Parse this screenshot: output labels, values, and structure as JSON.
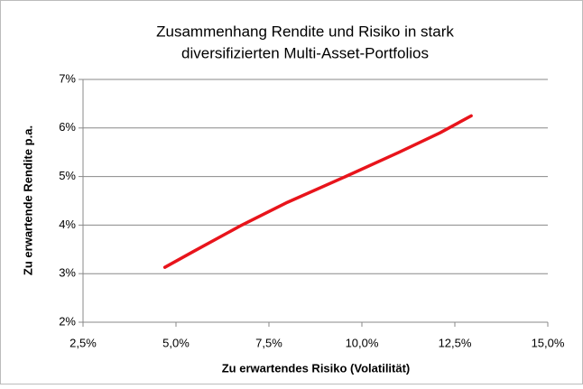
{
  "chart_data": {
    "type": "line",
    "title": [
      "Zusammenhang Rendite und Risiko in stark",
      "diversifizierten Multi-Asset-Portfolios"
    ],
    "x_label": "Zu erwartendes Risiko (Volatilität)",
    "y_label": "Zu erwartende Rendite p.a.",
    "x": [
      4.7,
      5.5,
      6.77,
      8.0,
      9.56,
      11.0,
      12.1,
      12.94
    ],
    "series": [
      {
        "name": "Rendite",
        "color": "#e8141b",
        "values": [
          3.13,
          3.47,
          4.0,
          4.47,
          5.0,
          5.5,
          5.9,
          6.25
        ]
      }
    ],
    "xlim": [
      2.5,
      15
    ],
    "xticks": [
      {
        "value": 2.5,
        "label": "2,5%"
      },
      {
        "value": 5,
        "label": "5,0%"
      },
      {
        "value": 7.5,
        "label": "7,5%"
      },
      {
        "value": 10,
        "label": "10,0%"
      },
      {
        "value": 12.5,
        "label": "12,5%"
      },
      {
        "value": 15,
        "label": "15,0%"
      }
    ],
    "ylim": [
      2,
      7
    ],
    "yticks": [
      {
        "value": 2,
        "label": "2%"
      },
      {
        "value": 3,
        "label": "3%"
      },
      {
        "value": 4,
        "label": "4%"
      },
      {
        "value": 5,
        "label": "5%"
      },
      {
        "value": 6,
        "label": "6%"
      },
      {
        "value": 7,
        "label": "7%"
      }
    ],
    "grid": true
  }
}
